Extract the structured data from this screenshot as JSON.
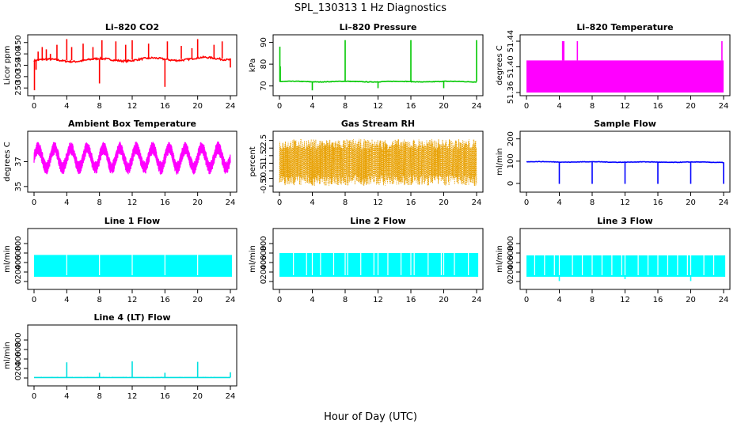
{
  "page": {
    "title": "SPL_130313  1 Hz Diagnostics",
    "xlabel": "Hour of Day (UTC)"
  },
  "chart_data": [
    {
      "type": "line",
      "title": "Li–820 CO2",
      "ylabel": "Licor ppm",
      "color": "#ff0000",
      "xlim": [
        0,
        24
      ],
      "xticks": [
        0,
        4,
        8,
        12,
        16,
        20,
        24
      ],
      "ylim": [
        230,
        470
      ],
      "yticks": [
        250,
        300,
        350,
        400,
        450
      ],
      "base": {
        "start": 370,
        "end": 380,
        "wobble": 6,
        "noise": 8
      },
      "spikes": [
        {
          "x": 0.05,
          "y": 240
        },
        {
          "x": 0.25,
          "y": 330
        },
        {
          "x": 0.5,
          "y": 410
        },
        {
          "x": 1.0,
          "y": 430
        },
        {
          "x": 1.5,
          "y": 420
        },
        {
          "x": 2.0,
          "y": 400
        },
        {
          "x": 2.8,
          "y": 440
        },
        {
          "x": 4.0,
          "y": 465
        },
        {
          "x": 4.6,
          "y": 430
        },
        {
          "x": 6.0,
          "y": 445
        },
        {
          "x": 7.2,
          "y": 430
        },
        {
          "x": 8.0,
          "y": 270
        },
        {
          "x": 8.3,
          "y": 460
        },
        {
          "x": 10.0,
          "y": 455
        },
        {
          "x": 11.2,
          "y": 440
        },
        {
          "x": 12.0,
          "y": 460
        },
        {
          "x": 14.0,
          "y": 445
        },
        {
          "x": 16.0,
          "y": 255
        },
        {
          "x": 16.3,
          "y": 455
        },
        {
          "x": 18.0,
          "y": 435
        },
        {
          "x": 19.3,
          "y": 425
        },
        {
          "x": 20.0,
          "y": 465
        },
        {
          "x": 22.0,
          "y": 440
        },
        {
          "x": 23.0,
          "y": 455
        },
        {
          "x": 24.0,
          "y": 340
        }
      ]
    },
    {
      "type": "line",
      "title": "Li–820 Pressure",
      "ylabel": "kPa",
      "color": "#00c800",
      "xlim": [
        0,
        24
      ],
      "xticks": [
        0,
        4,
        8,
        12,
        16,
        20,
        24
      ],
      "ylim": [
        67,
        92
      ],
      "yticks": [
        70,
        80,
        90
      ],
      "base": {
        "start": 72,
        "end": 72,
        "wobble": 0.15,
        "noise": 0.25
      },
      "spikes": [
        {
          "x": 0.05,
          "y": 88
        },
        {
          "x": 0.1,
          "y": 79
        },
        {
          "x": 4.0,
          "y": 68
        },
        {
          "x": 8.0,
          "y": 91
        },
        {
          "x": 12.0,
          "y": 69
        },
        {
          "x": 16.0,
          "y": 91
        },
        {
          "x": 20.0,
          "y": 69
        },
        {
          "x": 24.0,
          "y": 91
        }
      ]
    },
    {
      "type": "area",
      "title": "Li–820 Temperature",
      "ylabel": "degrees C",
      "color": "#ff00ff",
      "xlim": [
        0,
        24
      ],
      "xticks": [
        0,
        4,
        8,
        12,
        16,
        20,
        24
      ],
      "ylim": [
        51.36,
        51.445
      ],
      "yticks": [
        51.36,
        51.4,
        51.44
      ],
      "band": [
        51.36,
        51.41
      ],
      "spikes": [
        {
          "x": 4.4,
          "y": 51.44
        },
        {
          "x": 4.55,
          "y": 51.44
        },
        {
          "x": 6.2,
          "y": 51.44
        },
        {
          "x": 23.8,
          "y": 51.44
        }
      ]
    },
    {
      "type": "line",
      "title": "Ambient Box Temperature",
      "ylabel": "degrees C",
      "color": "#ff00ff",
      "xlim": [
        0,
        24
      ],
      "xticks": [
        0,
        4,
        8,
        12,
        16,
        20,
        24
      ],
      "ylim": [
        34.8,
        39.2
      ],
      "yticks": [
        35,
        37
      ],
      "oscillation": {
        "mean": 37.3,
        "period_hours": 2.0,
        "amplitude": 0.8,
        "jitter": 0.55
      }
    },
    {
      "type": "scatter",
      "title": "Gas Stream RH",
      "ylabel": "percent",
      "color": "#e8a000",
      "xlim": [
        0,
        24
      ],
      "xticks": [
        0,
        4,
        8,
        12,
        16,
        20,
        24
      ],
      "ylim": [
        -0.7,
        2.9
      ],
      "yticks": [
        -0.5,
        0.0,
        0.5,
        1.0,
        1.5,
        2.0,
        2.5
      ],
      "envelope": {
        "low": -0.5,
        "high": 2.6,
        "mean": 1.1
      }
    },
    {
      "type": "line",
      "title": "Sample Flow",
      "ylabel": "ml/min",
      "color": "#0000ff",
      "xlim": [
        0,
        24
      ],
      "xticks": [
        0,
        4,
        8,
        12,
        16,
        20,
        24
      ],
      "ylim": [
        -25,
        220
      ],
      "yticks": [
        0,
        100,
        200
      ],
      "base": {
        "start": 97,
        "end": 95,
        "wobble": 1,
        "noise": 2
      },
      "spikes": [
        {
          "x": 4.0,
          "y": -2
        },
        {
          "x": 8.0,
          "y": -2
        },
        {
          "x": 12.0,
          "y": -2
        },
        {
          "x": 16.0,
          "y": -2
        },
        {
          "x": 20.0,
          "y": -2
        },
        {
          "x": 24.0,
          "y": -2
        }
      ]
    },
    {
      "type": "area",
      "title": "Line 1 Flow",
      "ylabel": "ml/min",
      "color": "#00ffff",
      "xlim": [
        0,
        24
      ],
      "xticks": [
        0,
        4,
        8,
        12,
        16,
        20,
        24
      ],
      "ylim": [
        -100,
        1050
      ],
      "yticks": [
        0,
        200,
        400,
        600,
        800
      ],
      "band": [
        100,
        560
      ],
      "band_xlim": [
        0,
        24.2
      ],
      "gaps": [
        4.0,
        8.0,
        12.0,
        16.0,
        20.0
      ]
    },
    {
      "type": "area",
      "title": "Line 2 Flow",
      "ylabel": "ml/min",
      "color": "#00ffff",
      "xlim": [
        0,
        24
      ],
      "xticks": [
        0,
        4,
        8,
        12,
        16,
        20,
        24
      ],
      "ylim": [
        -100,
        1050
      ],
      "yticks": [
        0,
        200,
        400,
        600,
        800
      ],
      "band": [
        100,
        600
      ],
      "band_xlim": [
        0,
        24.2
      ],
      "gaps": [
        1.7,
        3.3,
        4.0,
        5.0,
        6.6,
        8.0,
        8.3,
        9.9,
        11.5,
        12.0,
        13.2,
        14.8,
        16.0,
        16.4,
        18.1,
        19.7,
        20.0,
        21.3,
        23.0
      ]
    },
    {
      "type": "area",
      "title": "Line 3 Flow",
      "ylabel": "ml/min",
      "color": "#00ffff",
      "xlim": [
        0,
        24
      ],
      "xticks": [
        0,
        4,
        8,
        12,
        16,
        20,
        24
      ],
      "ylim": [
        -100,
        1050
      ],
      "yticks": [
        0,
        200,
        400,
        600,
        800
      ],
      "band": [
        100,
        550
      ],
      "band_xlim": [
        0,
        24.2
      ],
      "gaps": [
        1.0,
        2.2,
        3.4,
        4.0,
        5.6,
        6.8,
        8.0,
        9.2,
        10.4,
        11.6,
        12.0,
        13.6,
        14.8,
        16.0,
        17.2,
        18.4,
        19.6,
        20.0,
        21.6,
        22.8
      ],
      "spikes": [
        {
          "x": 4.0,
          "y": 10
        },
        {
          "x": 12.0,
          "y": 50
        },
        {
          "x": 20.0,
          "y": 10
        }
      ]
    },
    {
      "type": "line",
      "title": "Line 4 (LT) Flow",
      "ylabel": "ml/min",
      "color": "#00e0e0",
      "xlim": [
        0,
        24
      ],
      "xticks": [
        0,
        4,
        8,
        12,
        16,
        20,
        24
      ],
      "ylim": [
        -100,
        1050
      ],
      "yticks": [
        0,
        200,
        400,
        600,
        800
      ],
      "base": {
        "start": 10,
        "end": 10,
        "wobble": 0,
        "noise": 2
      },
      "spikes": [
        {
          "x": 4.0,
          "y": 330
        },
        {
          "x": 8.0,
          "y": 110
        },
        {
          "x": 12.0,
          "y": 350
        },
        {
          "x": 16.0,
          "y": 110
        },
        {
          "x": 20.0,
          "y": 340
        },
        {
          "x": 24.0,
          "y": 120
        }
      ]
    }
  ]
}
